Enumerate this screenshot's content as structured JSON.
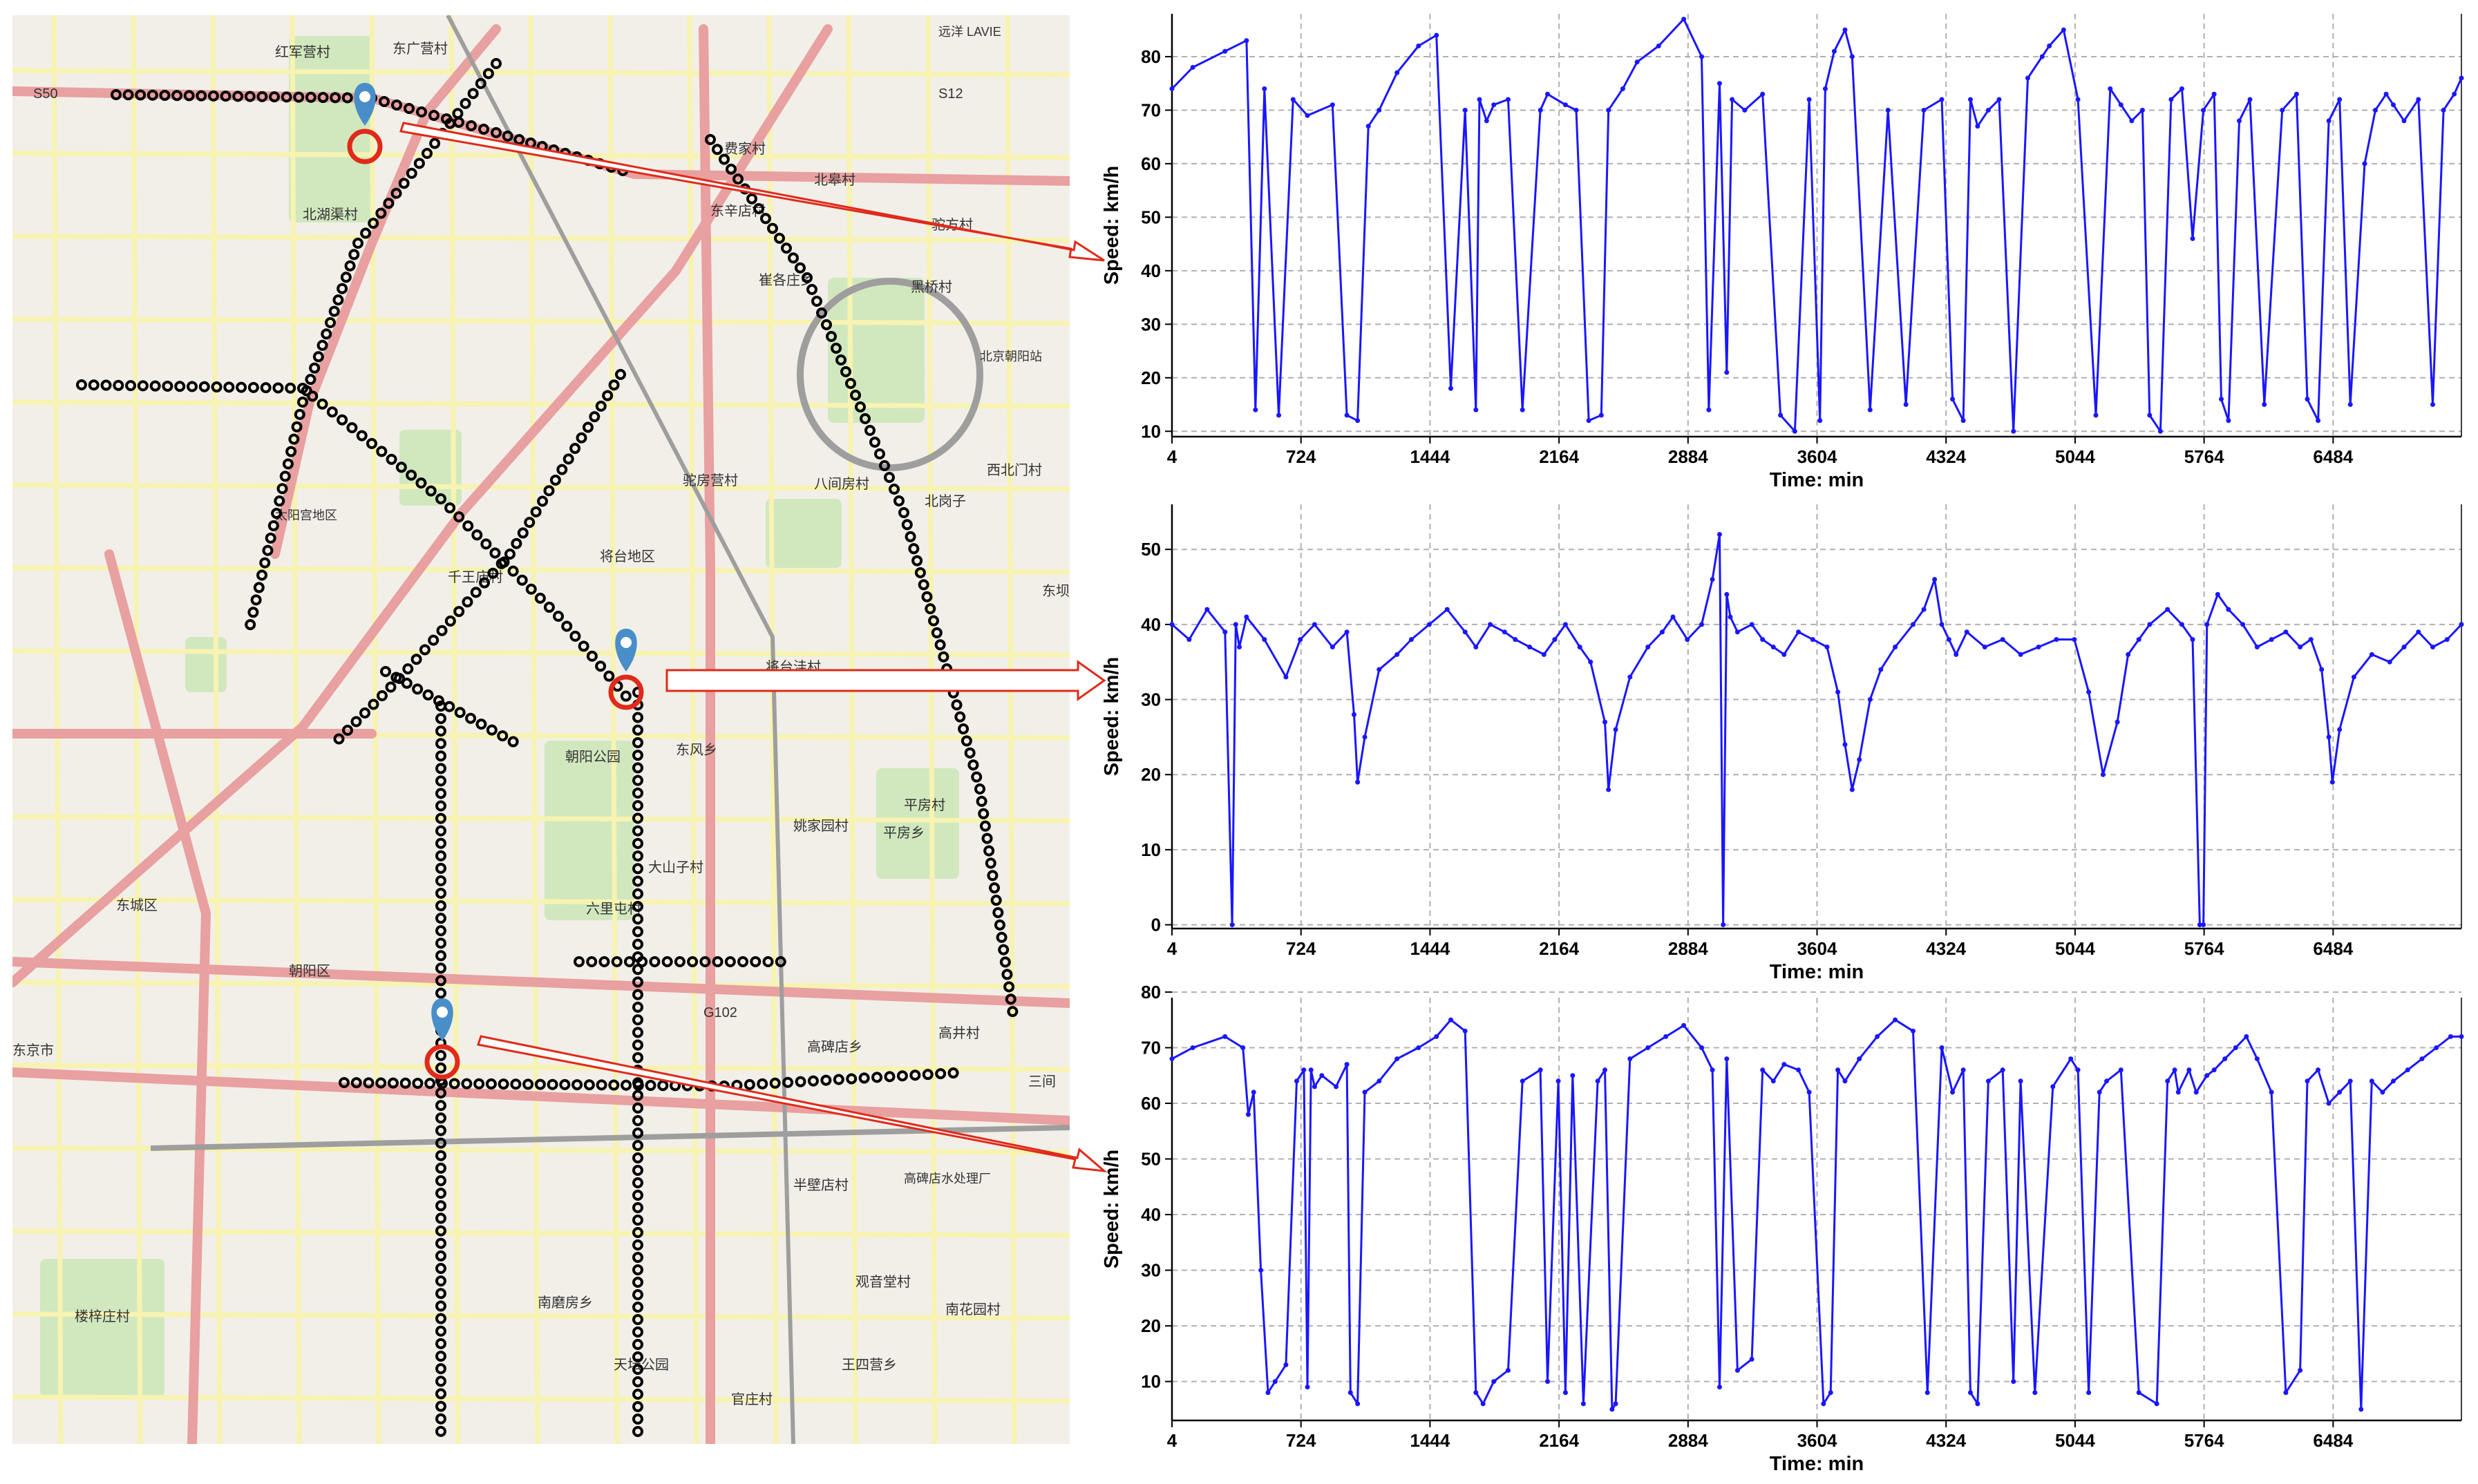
{
  "map": {
    "sensor_markers": [
      "sensor-1",
      "sensor-2",
      "sensor-3"
    ],
    "labels": [
      "红军营村",
      "东广营村",
      "S50",
      "S12",
      "远洋 LAVIE",
      "费家村",
      "北皋村",
      "东辛店村",
      "北湖渠村",
      "驼方村",
      "崔各庄乡",
      "黑桥村",
      "北京朝阳站",
      "太阳宫地区",
      "驼房营村",
      "八间房村",
      "北岗子",
      "西北门村",
      "将台地区",
      "千王庙村",
      "将台洼村",
      "东坝",
      "G102",
      "东风乡",
      "朝阳公园",
      "平房村",
      "姚家园村",
      "平房乡",
      "大山子村",
      "六里屯村",
      "东城区",
      "朝阳区",
      "高井村",
      "高碑店乡",
      "三间",
      "半壁店村",
      "高碑店水处理厂",
      "观音堂村",
      "南磨房乡",
      "南花园村",
      "王四营乡",
      "天坛公园",
      "楼梓庄村",
      "官庄村",
      "东京市"
    ],
    "colors": {
      "land": "#f2efe9",
      "green": "#c8e6b4",
      "major_road": "#e8a0a0",
      "road": "#f7f3b0",
      "rail": "#9e9e9e",
      "route": "#000000",
      "pin": "#4a8ec9",
      "ring": "#e02a1a"
    }
  },
  "chart_data": [
    {
      "type": "line",
      "xlabel": "Time: min",
      "ylabel": "Speed: km/h",
      "xticks": [
        4,
        724,
        1444,
        2164,
        2884,
        3604,
        4324,
        5044,
        5764,
        6484
      ],
      "yticks": [
        10,
        20,
        30,
        40,
        50,
        60,
        70,
        80
      ],
      "xlim": [
        4,
        7200
      ],
      "ylim": [
        9,
        88
      ],
      "grid": true,
      "series": [
        {
          "color": "#1a16ff",
          "x": [
            4,
            120,
            300,
            420,
            470,
            520,
            600,
            680,
            760,
            900,
            980,
            1040,
            1100,
            1160,
            1260,
            1380,
            1480,
            1560,
            1640,
            1700,
            1720,
            1760,
            1800,
            1880,
            1960,
            2060,
            2100,
            2200,
            2260,
            2330,
            2400,
            2440,
            2520,
            2600,
            2720,
            2860,
            2960,
            3000,
            3060,
            3100,
            3130,
            3200,
            3300,
            3400,
            3480,
            3560,
            3620,
            3650,
            3700,
            3760,
            3800,
            3900,
            4000,
            4100,
            4200,
            4300,
            4360,
            4420,
            4460,
            4500,
            4560,
            4620,
            4700,
            4780,
            4860,
            4900,
            4980,
            5060,
            5160,
            5240,
            5300,
            5360,
            5420,
            5460,
            5520,
            5580,
            5640,
            5700,
            5760,
            5820,
            5860,
            5900,
            5960,
            6020,
            6100,
            6200,
            6280,
            6340,
            6400,
            6460,
            6520,
            6580,
            6660,
            6720,
            6780,
            6820,
            6880,
            6960,
            7040,
            7100,
            7160,
            7200
          ],
          "y": [
            74,
            78,
            81,
            83,
            14,
            74,
            13,
            72,
            69,
            71,
            13,
            12,
            67,
            70,
            77,
            82,
            84,
            18,
            70,
            14,
            72,
            68,
            71,
            72,
            14,
            70,
            73,
            71,
            70,
            12,
            13,
            70,
            74,
            79,
            82,
            87,
            80,
            14,
            75,
            21,
            72,
            70,
            73,
            13,
            10,
            72,
            12,
            74,
            81,
            85,
            80,
            14,
            70,
            15,
            70,
            72,
            16,
            12,
            72,
            67,
            70,
            72,
            10,
            76,
            80,
            82,
            85,
            72,
            13,
            74,
            71,
            68,
            70,
            13,
            10,
            72,
            74,
            46,
            70,
            73,
            16,
            12,
            68,
            72,
            15,
            70,
            73,
            16,
            12,
            68,
            72,
            15,
            60,
            70,
            73,
            71,
            68,
            72,
            15,
            70,
            73,
            76
          ]
        }
      ]
    },
    {
      "type": "line",
      "xlabel": "Time: min",
      "ylabel": "Speed: km/h",
      "xticks": [
        4,
        724,
        1444,
        2164,
        2884,
        3604,
        4324,
        5044,
        5764,
        6484
      ],
      "yticks": [
        0,
        10,
        20,
        30,
        40,
        50
      ],
      "xlim": [
        4,
        7200
      ],
      "ylim": [
        -0.5,
        56
      ],
      "grid": true,
      "series": [
        {
          "color": "#1a16ff",
          "x": [
            4,
            100,
            200,
            300,
            340,
            360,
            380,
            420,
            520,
            640,
            720,
            800,
            900,
            980,
            1020,
            1040,
            1080,
            1160,
            1260,
            1340,
            1440,
            1540,
            1640,
            1700,
            1780,
            1860,
            1920,
            2000,
            2080,
            2140,
            2200,
            2280,
            2340,
            2420,
            2440,
            2480,
            2560,
            2660,
            2740,
            2800,
            2880,
            2960,
            3020,
            3060,
            3080,
            3100,
            3120,
            3160,
            3240,
            3300,
            3360,
            3420,
            3500,
            3580,
            3660,
            3720,
            3760,
            3800,
            3840,
            3900,
            3960,
            4040,
            4140,
            4200,
            4260,
            4300,
            4340,
            4380,
            4440,
            4540,
            4640,
            4740,
            4840,
            4940,
            5040,
            5120,
            5200,
            5280,
            5340,
            5400,
            5460,
            5560,
            5640,
            5700,
            5740,
            5760,
            5780,
            5840,
            5900,
            5980,
            6060,
            6140,
            6220,
            6300,
            6360,
            6420,
            6460,
            6480,
            6520,
            6600,
            6700,
            6800,
            6880,
            6960,
            7040,
            7120,
            7200
          ],
          "y": [
            40,
            38,
            42,
            39,
            0,
            40,
            37,
            41,
            38,
            33,
            38,
            40,
            37,
            39,
            28,
            19,
            25,
            34,
            36,
            38,
            40,
            42,
            39,
            37,
            40,
            39,
            38,
            37,
            36,
            38,
            40,
            37,
            35,
            27,
            18,
            26,
            33,
            37,
            39,
            41,
            38,
            40,
            46,
            52,
            0,
            44,
            41,
            39,
            40,
            38,
            37,
            36,
            39,
            38,
            37,
            31,
            24,
            18,
            22,
            30,
            34,
            37,
            40,
            42,
            46,
            40,
            38,
            36,
            39,
            37,
            38,
            36,
            37,
            38,
            38,
            31,
            20,
            27,
            36,
            38,
            40,
            42,
            40,
            38,
            0,
            0,
            40,
            44,
            42,
            40,
            37,
            38,
            39,
            37,
            38,
            34,
            25,
            19,
            26,
            33,
            36,
            35,
            37,
            39,
            37,
            38,
            40
          ]
        }
      ]
    },
    {
      "type": "line",
      "xlabel": "Time: min",
      "ylabel": "Speed: km/h",
      "xticks": [
        4,
        724,
        1444,
        2164,
        2884,
        3604,
        4324,
        5044,
        5764,
        6484
      ],
      "yticks": [
        10,
        20,
        30,
        40,
        50,
        60,
        70,
        80
      ],
      "xlim": [
        4,
        7200
      ],
      "ylim": [
        3,
        79
      ],
      "grid": true,
      "series": [
        {
          "color": "#1a16ff",
          "x": [
            4,
            120,
            300,
            400,
            430,
            460,
            500,
            540,
            580,
            640,
            700,
            740,
            760,
            780,
            800,
            840,
            920,
            980,
            1000,
            1040,
            1080,
            1160,
            1260,
            1380,
            1480,
            1560,
            1640,
            1700,
            1740,
            1800,
            1880,
            1960,
            2060,
            2100,
            2160,
            2200,
            2240,
            2300,
            2380,
            2420,
            2460,
            2480,
            2560,
            2660,
            2760,
            2860,
            2960,
            3020,
            3060,
            3100,
            3160,
            3240,
            3300,
            3360,
            3420,
            3500,
            3560,
            3640,
            3680,
            3720,
            3760,
            3840,
            3940,
            4040,
            4140,
            4220,
            4300,
            4360,
            4420,
            4460,
            4500,
            4560,
            4640,
            4700,
            4740,
            4820,
            4920,
            5020,
            5060,
            5120,
            5180,
            5220,
            5300,
            5400,
            5500,
            5560,
            5600,
            5620,
            5680,
            5720,
            5780,
            5820,
            5880,
            5940,
            6000,
            6060,
            6140,
            6220,
            6300,
            6340,
            6400,
            6460,
            6520,
            6580,
            6640,
            6700,
            6760,
            6820,
            6900,
            6980,
            7060,
            7140,
            7200
          ],
          "y": [
            68,
            70,
            72,
            70,
            58,
            62,
            30,
            8,
            10,
            13,
            64,
            66,
            9,
            66,
            63,
            65,
            63,
            67,
            8,
            6,
            62,
            64,
            68,
            70,
            72,
            75,
            73,
            8,
            6,
            10,
            12,
            64,
            66,
            10,
            64,
            8,
            65,
            6,
            64,
            66,
            5,
            6,
            68,
            70,
            72,
            74,
            70,
            66,
            9,
            68,
            12,
            14,
            66,
            64,
            67,
            66,
            62,
            6,
            8,
            66,
            64,
            68,
            72,
            75,
            73,
            8,
            70,
            62,
            66,
            8,
            6,
            64,
            66,
            10,
            64,
            8,
            63,
            68,
            66,
            8,
            62,
            64,
            66,
            8,
            6,
            64,
            66,
            62,
            66,
            62,
            65,
            66,
            68,
            70,
            72,
            68,
            62,
            8,
            12,
            64,
            66,
            60,
            62,
            64,
            5,
            64,
            62,
            64,
            66,
            68,
            70,
            72,
            72
          ]
        }
      ]
    }
  ]
}
